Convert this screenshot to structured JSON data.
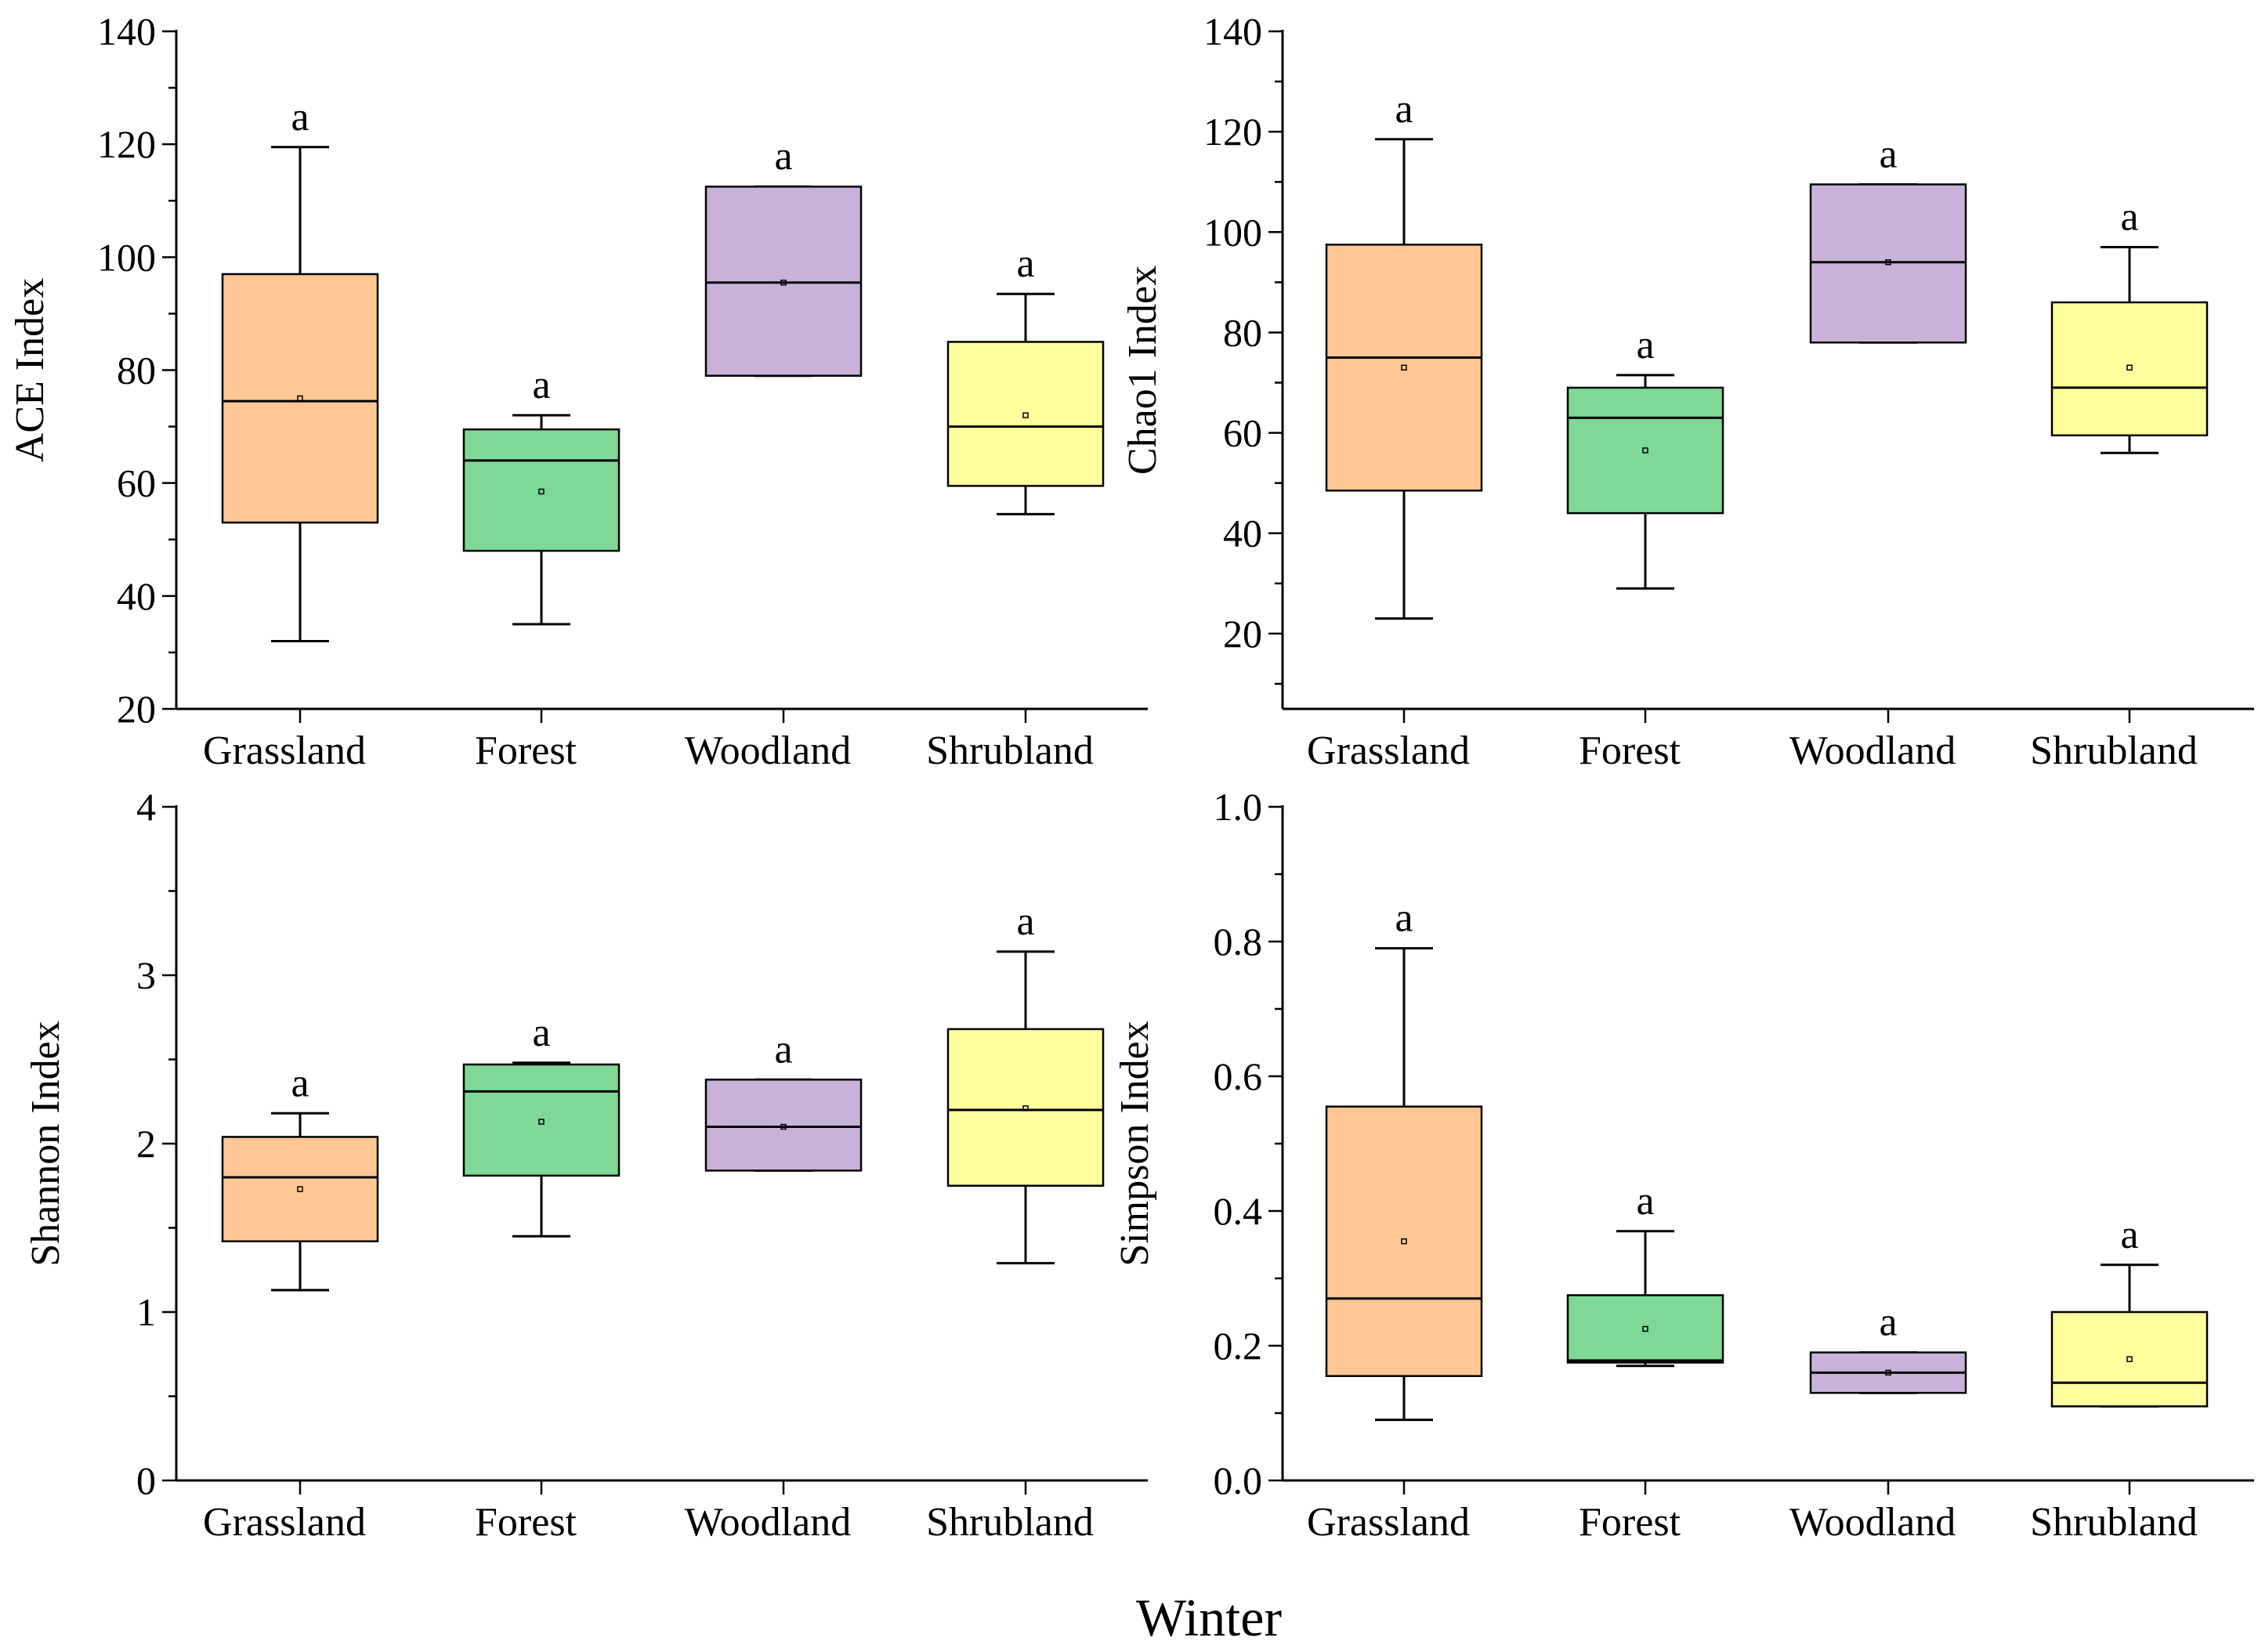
{
  "chart_data": {
    "type": "box",
    "figure_xlabel": "Winter",
    "categories": [
      "Grassland",
      "Forest",
      "Woodland",
      "Shrubland"
    ],
    "colors": [
      "#FFC794",
      "#7DD995",
      "#C9B2D8",
      "#FFFF9E"
    ],
    "panels": [
      {
        "ylabel": "ACE Index",
        "ylim": [
          20,
          140
        ],
        "yticks": [
          20,
          40,
          60,
          80,
          100,
          120,
          140
        ],
        "tick_labels": [
          "20",
          "40",
          "60",
          "80",
          "100",
          "120",
          "140"
        ],
        "groups": [
          {
            "min": 32,
            "q1": 53,
            "median": 74.5,
            "q3": 97,
            "max": 119.5,
            "mean": 75,
            "sig": "a"
          },
          {
            "min": 35,
            "q1": 48,
            "median": 64,
            "q3": 69.5,
            "max": 72,
            "mean": 58.5,
            "sig": "a"
          },
          {
            "min": 79,
            "q1": 79,
            "median": 95.5,
            "q3": 112.5,
            "max": 112.5,
            "mean": 95.5,
            "sig": "a"
          },
          {
            "min": 54.5,
            "q1": 59.5,
            "median": 70,
            "q3": 85,
            "max": 93.5,
            "mean": 72,
            "sig": "a"
          }
        ]
      },
      {
        "ylabel": "Chao1 Index",
        "ylim": [
          5,
          140
        ],
        "yticks": [
          20,
          40,
          60,
          80,
          100,
          120,
          140
        ],
        "tick_labels": [
          "20",
          "40",
          "60",
          "80",
          "100",
          "120",
          "140"
        ],
        "groups": [
          {
            "min": 23,
            "q1": 48.5,
            "median": 75,
            "q3": 97.5,
            "max": 118.5,
            "mean": 73,
            "sig": "a"
          },
          {
            "min": 29,
            "q1": 44,
            "median": 63,
            "q3": 69,
            "max": 71.5,
            "mean": 56.5,
            "sig": "a"
          },
          {
            "min": 78,
            "q1": 78,
            "median": 94,
            "q3": 109.5,
            "max": 109.5,
            "mean": 94,
            "sig": "a"
          },
          {
            "min": 56,
            "q1": 59.5,
            "median": 69,
            "q3": 86,
            "max": 97,
            "mean": 73,
            "sig": "a"
          }
        ]
      },
      {
        "ylabel": "Shannon Index",
        "ylim": [
          0,
          4
        ],
        "yticks": [
          0,
          1,
          2,
          3,
          4
        ],
        "tick_labels": [
          "0",
          "1",
          "2",
          "3",
          "4"
        ],
        "groups": [
          {
            "min": 1.13,
            "q1": 1.42,
            "median": 1.8,
            "q3": 2.04,
            "max": 2.18,
            "mean": 1.73,
            "sig": "a"
          },
          {
            "min": 1.45,
            "q1": 1.81,
            "median": 2.31,
            "q3": 2.47,
            "max": 2.48,
            "mean": 2.13,
            "sig": "a"
          },
          {
            "min": 1.84,
            "q1": 1.84,
            "median": 2.1,
            "q3": 2.38,
            "max": 2.38,
            "mean": 2.1,
            "sig": "a"
          },
          {
            "min": 1.29,
            "q1": 1.75,
            "median": 2.2,
            "q3": 2.68,
            "max": 3.14,
            "mean": 2.21,
            "sig": "a"
          }
        ]
      },
      {
        "ylabel": "Simpson Index",
        "ylim": [
          0,
          1
        ],
        "yticks": [
          0,
          0.2,
          0.4,
          0.6,
          0.8,
          1.0
        ],
        "tick_labels": [
          "0.0",
          "0.2",
          "0.4",
          "0.6",
          "0.8",
          "1.0"
        ],
        "groups": [
          {
            "min": 0.09,
            "q1": 0.155,
            "median": 0.27,
            "q3": 0.555,
            "max": 0.79,
            "mean": 0.355,
            "sig": "a"
          },
          {
            "min": 0.17,
            "q1": 0.175,
            "median": 0.178,
            "q3": 0.275,
            "max": 0.37,
            "mean": 0.225,
            "sig": "a"
          },
          {
            "min": 0.13,
            "q1": 0.13,
            "median": 0.16,
            "q3": 0.19,
            "max": 0.19,
            "mean": 0.16,
            "sig": "a"
          },
          {
            "min": 0.11,
            "q1": 0.11,
            "median": 0.145,
            "q3": 0.25,
            "max": 0.32,
            "mean": 0.18,
            "sig": "a"
          }
        ]
      }
    ]
  }
}
